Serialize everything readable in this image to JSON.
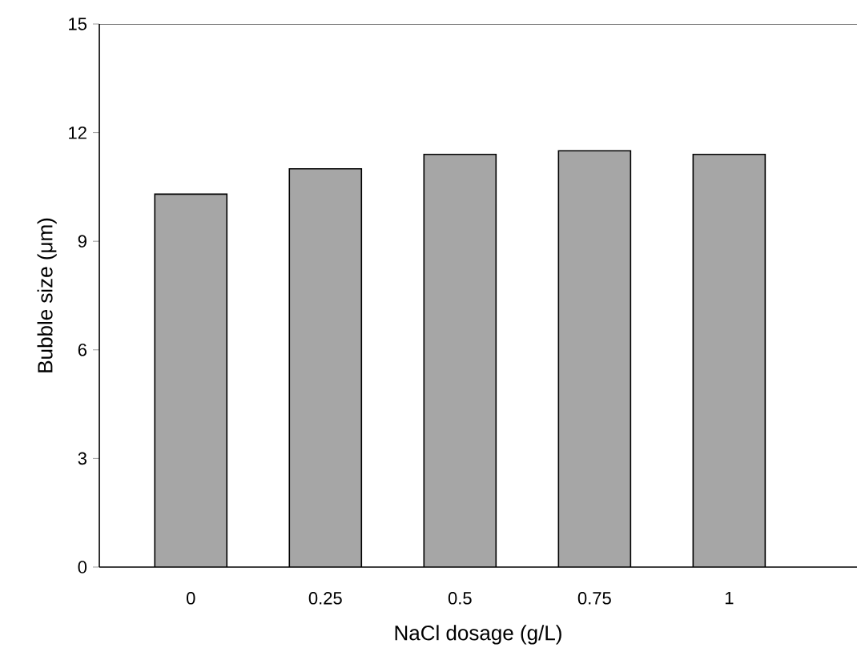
{
  "chart_data": {
    "type": "bar",
    "xlabel": "NaCl dosage (g/L)",
    "ylabel": "Bubble size (μm)",
    "categories": [
      "0",
      "0.25",
      "0.5",
      "0.75",
      "1"
    ],
    "values": [
      10.3,
      11.0,
      11.4,
      11.5,
      11.4
    ],
    "color": "#a6a6a6",
    "ylim": [
      0,
      15
    ],
    "yticks": [
      0,
      3,
      6,
      9,
      12,
      15
    ]
  }
}
